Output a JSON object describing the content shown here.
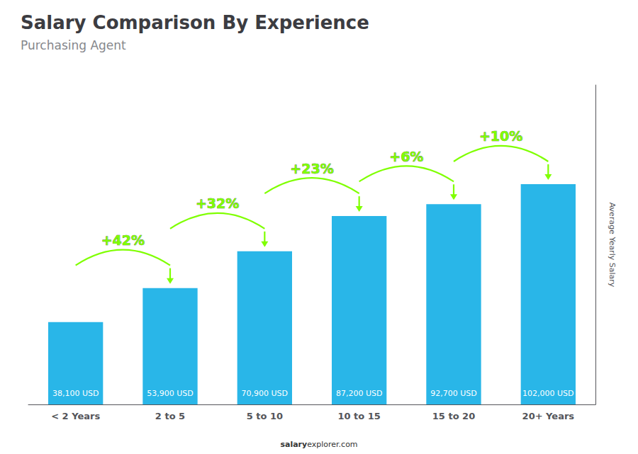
{
  "chart_data": {
    "type": "bar",
    "title": "Salary Comparison By Experience",
    "subtitle": "Purchasing Agent",
    "ylabel": "Average Yearly Salary",
    "categories": [
      "< 2 Years",
      "2 to 5",
      "5 to 10",
      "10 to 15",
      "15 to 20",
      "20+ Years"
    ],
    "values": [
      38100,
      53900,
      70900,
      87200,
      92700,
      102000
    ],
    "value_labels": [
      "38,100 USD",
      "53,900 USD",
      "70,900 USD",
      "87,200 USD",
      "92,700 USD",
      "102,000 USD"
    ],
    "data_labels": true,
    "color": "#29B6E8",
    "ylim": [
      0,
      147900
    ],
    "tick_labels": "x",
    "grid": false,
    "annotations": [
      {
        "text": "+42%",
        "color": "#7FFF00"
      },
      {
        "text": "+32%",
        "color": "#7FFF00"
      },
      {
        "text": "+23%",
        "color": "#7FFF00"
      },
      {
        "text": "+6%",
        "color": "#7FFF00"
      },
      {
        "text": "+10%",
        "color": "#7FFF00"
      }
    ],
    "watermark": [
      "salary",
      "explorer.com"
    ]
  }
}
